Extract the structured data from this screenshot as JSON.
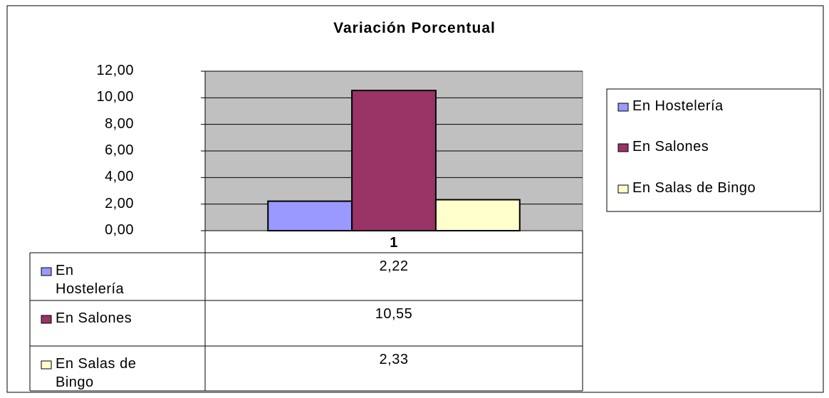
{
  "chart_data": {
    "type": "bar",
    "title": "Variación Porcentual",
    "categories": [
      "1"
    ],
    "series": [
      {
        "name": "En Hostelería",
        "color": "#9999ff",
        "values": [
          2.22
        ],
        "value_labels": [
          "2,22"
        ]
      },
      {
        "name": "En Salones",
        "color": "#993366",
        "values": [
          10.55
        ],
        "value_labels": [
          "10,55"
        ]
      },
      {
        "name": "En Salas de Bingo",
        "color": "#ffffcc",
        "values": [
          2.33
        ],
        "value_labels": [
          "2,33"
        ]
      }
    ],
    "ylim": [
      0,
      12
    ],
    "yticks": [
      {
        "value": 0,
        "label": "0,00"
      },
      {
        "value": 2,
        "label": "2,00"
      },
      {
        "value": 4,
        "label": "4,00"
      },
      {
        "value": 6,
        "label": "6,00"
      },
      {
        "value": 8,
        "label": "8,00"
      },
      {
        "value": 10,
        "label": "10,00"
      },
      {
        "value": 12,
        "label": "12,00"
      }
    ],
    "grid": true,
    "plot_background": "#c0c0c0",
    "legend": "right"
  }
}
